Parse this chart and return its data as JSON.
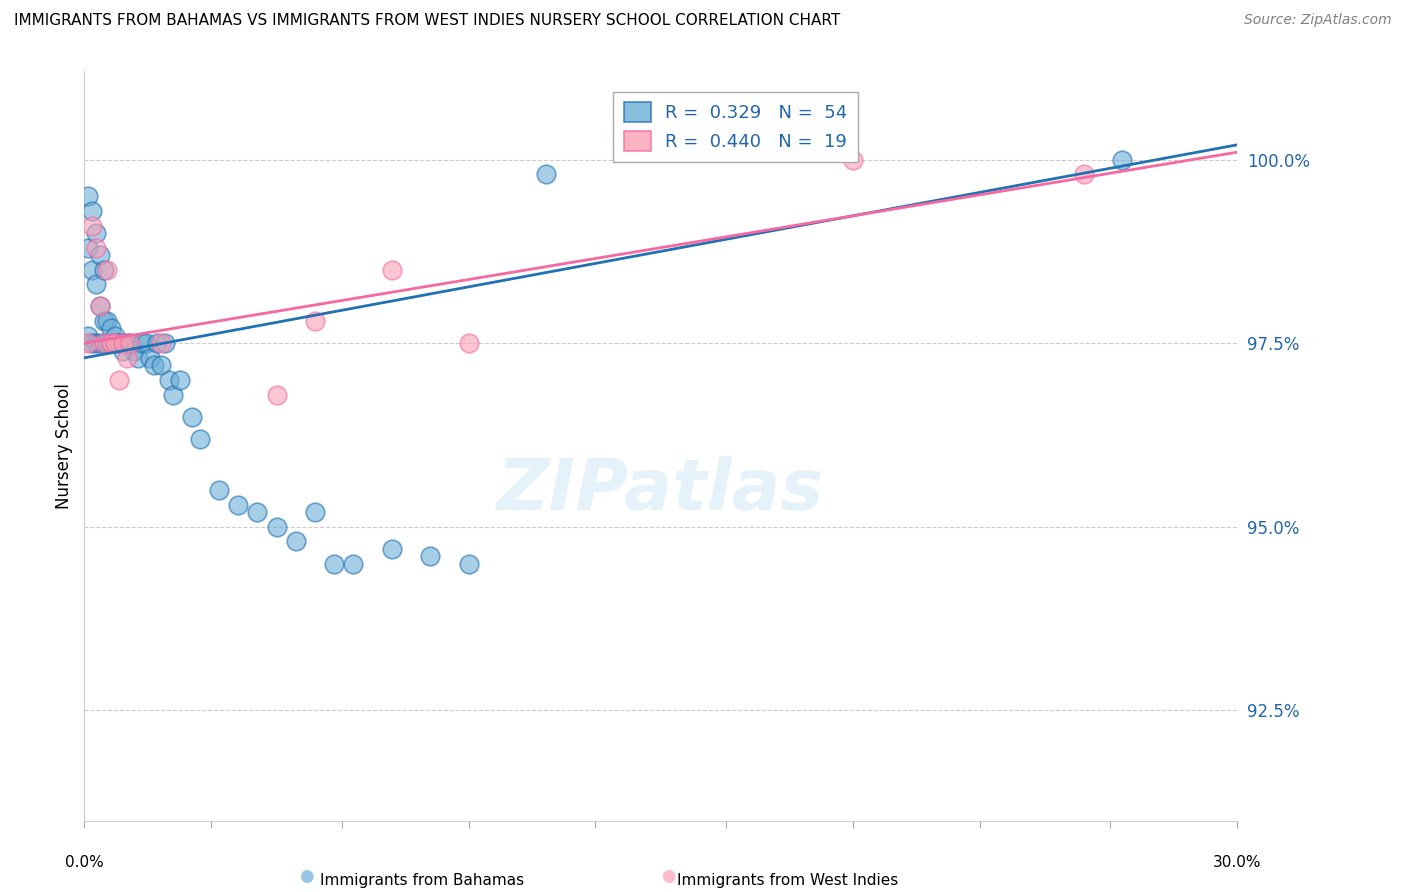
{
  "title": "IMMIGRANTS FROM BAHAMAS VS IMMIGRANTS FROM WEST INDIES NURSERY SCHOOL CORRELATION CHART",
  "source": "Source: ZipAtlas.com",
  "ylabel": "Nursery School",
  "legend_label_blue": "Immigrants from Bahamas",
  "legend_label_pink": "Immigrants from West Indies",
  "blue_color": "#6baed6",
  "pink_color": "#fa9fb5",
  "blue_line_color": "#2171b5",
  "pink_line_color": "#f768a1",
  "yticks": [
    92.5,
    95.0,
    97.5,
    100.0
  ],
  "ytick_labels": [
    "92.5%",
    "95.0%",
    "97.5%",
    "100.0%"
  ],
  "xlim": [
    0.0,
    0.3
  ],
  "ylim": [
    91.0,
    101.2
  ],
  "blue_x": [
    0.001,
    0.001,
    0.001,
    0.002,
    0.002,
    0.002,
    0.003,
    0.003,
    0.003,
    0.004,
    0.004,
    0.004,
    0.005,
    0.005,
    0.005,
    0.006,
    0.006,
    0.007,
    0.007,
    0.008,
    0.008,
    0.009,
    0.009,
    0.01,
    0.01,
    0.011,
    0.012,
    0.013,
    0.014,
    0.015,
    0.016,
    0.017,
    0.018,
    0.019,
    0.02,
    0.021,
    0.022,
    0.023,
    0.025,
    0.028,
    0.03,
    0.035,
    0.04,
    0.045,
    0.05,
    0.055,
    0.06,
    0.065,
    0.07,
    0.08,
    0.09,
    0.1,
    0.12,
    0.27
  ],
  "blue_y": [
    99.5,
    98.8,
    97.6,
    99.3,
    98.5,
    97.5,
    99.0,
    98.3,
    97.5,
    98.7,
    98.0,
    97.5,
    98.5,
    97.8,
    97.5,
    97.8,
    97.5,
    97.7,
    97.5,
    97.6,
    97.5,
    97.5,
    97.5,
    97.5,
    97.4,
    97.5,
    97.5,
    97.4,
    97.3,
    97.5,
    97.5,
    97.3,
    97.2,
    97.5,
    97.2,
    97.5,
    97.0,
    96.8,
    97.0,
    96.5,
    96.2,
    95.5,
    95.3,
    95.2,
    95.0,
    94.8,
    95.2,
    94.5,
    94.5,
    94.7,
    94.6,
    94.5,
    99.8,
    100.0
  ],
  "pink_x": [
    0.001,
    0.002,
    0.003,
    0.004,
    0.005,
    0.006,
    0.007,
    0.008,
    0.009,
    0.01,
    0.011,
    0.012,
    0.02,
    0.05,
    0.06,
    0.08,
    0.1,
    0.2,
    0.26
  ],
  "pink_y": [
    97.5,
    99.1,
    98.8,
    98.0,
    97.5,
    98.5,
    97.5,
    97.5,
    97.0,
    97.5,
    97.3,
    97.5,
    97.5,
    96.8,
    97.8,
    98.5,
    97.5,
    100.0,
    99.8
  ],
  "blue_line_x": [
    0.0,
    0.3
  ],
  "blue_line_y": [
    97.3,
    100.2
  ],
  "pink_line_x": [
    0.0,
    0.3
  ],
  "pink_line_y": [
    97.5,
    100.1
  ],
  "xtick_positions": [
    0.0,
    0.033,
    0.067,
    0.1,
    0.133,
    0.167,
    0.2,
    0.233,
    0.267,
    0.3
  ]
}
